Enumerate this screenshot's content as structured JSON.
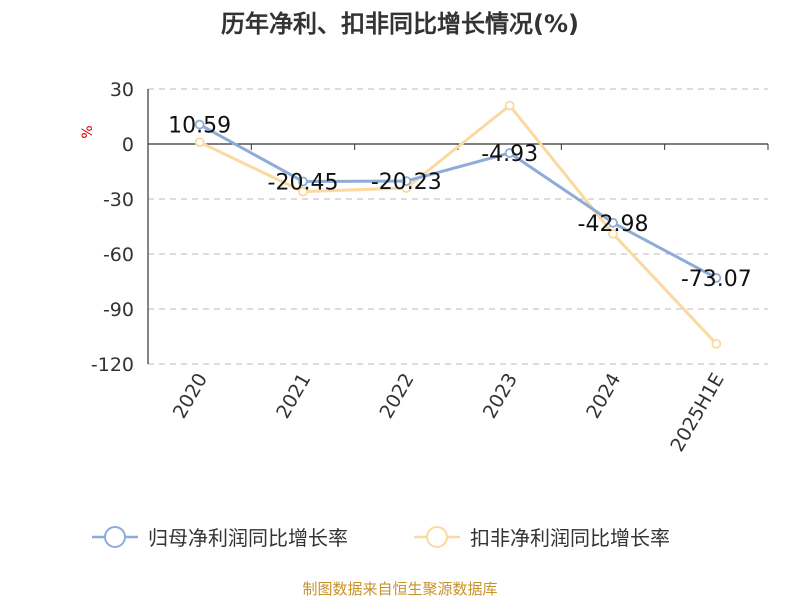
{
  "chart_data": {
    "type": "line",
    "title": "历年净利、扣非同比增长情况(%)",
    "ylabel": "%",
    "categories": [
      "2020",
      "2021",
      "2022",
      "2023",
      "2024",
      "2025H1E"
    ],
    "ylim": [
      -120,
      30
    ],
    "yticks": [
      30,
      0,
      -30,
      -60,
      -90,
      -120
    ],
    "grid": true,
    "legend_position": "bottom",
    "series": [
      {
        "name": "归母净利润同比增长率",
        "values": [
          10.59,
          -20.45,
          -20.23,
          -4.93,
          -42.98,
          -73.07
        ],
        "labels": [
          "10.59",
          "-20.45",
          "-20.23",
          "-4.93",
          "-42.98",
          "-73.07"
        ],
        "color": "#8eacd8"
      },
      {
        "name": "扣非净利润同比增长率",
        "values": [
          1.0,
          -26.0,
          -24.0,
          21.0,
          -49.0,
          -109.0
        ],
        "color": "#fbd9a0"
      }
    ],
    "source": "制图数据来自恒生聚源数据库"
  }
}
